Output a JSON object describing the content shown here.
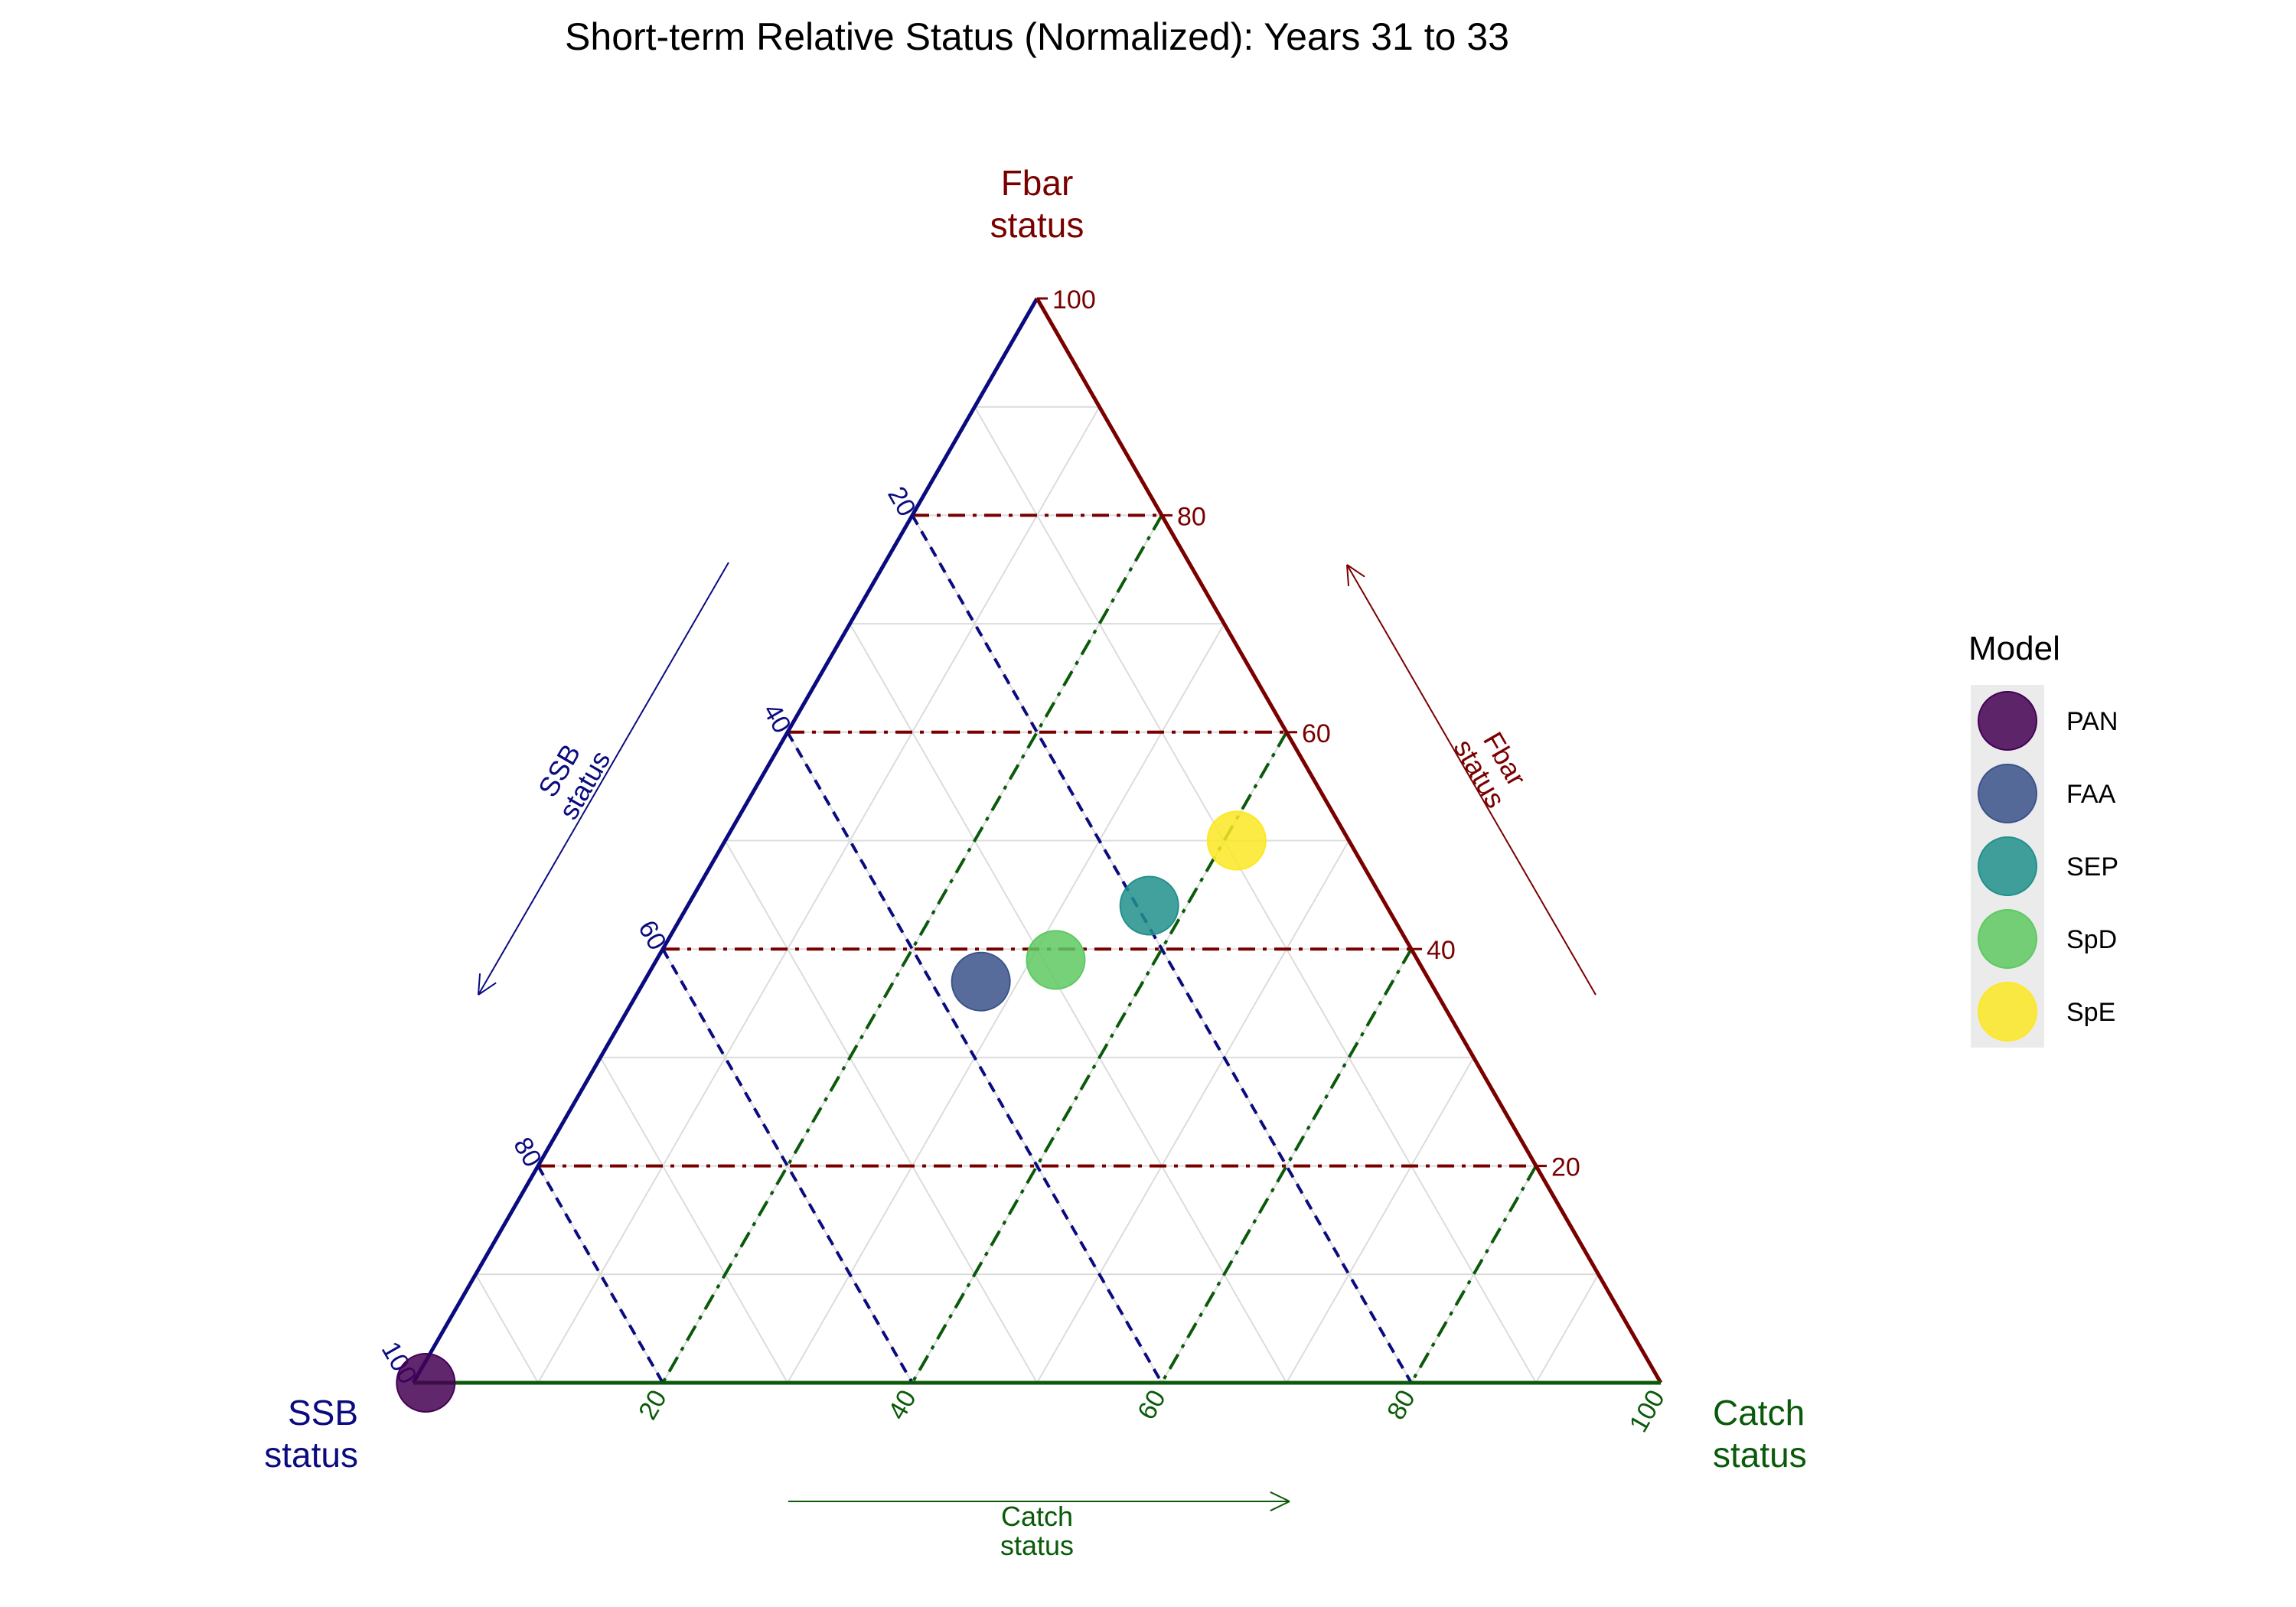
{
  "chart_data": {
    "type": "scatter",
    "subtype": "ternary",
    "title": "Short-term Relative Status (Normalized): Years 31 to 33",
    "axes": {
      "top": {
        "label_line1": "Fbar",
        "label_line2": "status",
        "arrow_label_line1": "Fbar",
        "arrow_label_line2": "status",
        "color": "#7a0000"
      },
      "left": {
        "label_line1": "SSB",
        "label_line2": "status",
        "arrow_label_line1": "SSB",
        "arrow_label_line2": "status",
        "color": "#0b0b80"
      },
      "right": {
        "label_line1": "Catch",
        "label_line2": "status",
        "arrow_label_line1": "Catch",
        "arrow_label_line2": "status",
        "color": "#0a5a0a"
      }
    },
    "ticks": [
      "20",
      "40",
      "60",
      "80",
      "100"
    ],
    "tick_values": [
      20,
      40,
      60,
      80,
      100
    ],
    "range": [
      0,
      100
    ],
    "grid": true,
    "minor_grid_step": 10,
    "legend": {
      "title": "Model",
      "position": "right",
      "entries": [
        "PAN",
        "FAA",
        "SEP",
        "SpD",
        "SpE"
      ]
    },
    "series": [
      {
        "name": "PAN",
        "color": "#440154",
        "fbar": 0.0,
        "ssb": 99.0,
        "catch": 1.0
      },
      {
        "name": "FAA",
        "color": "#3b528b",
        "fbar": 37.0,
        "ssb": 36.0,
        "catch": 27.0
      },
      {
        "name": "SEP",
        "color": "#21908c",
        "fbar": 44.0,
        "ssb": 19.0,
        "catch": 37.0
      },
      {
        "name": "SpD",
        "color": "#5ec962",
        "fbar": 39.0,
        "ssb": 29.0,
        "catch": 32.0
      },
      {
        "name": "SpE",
        "color": "#fde725",
        "fbar": 50.0,
        "ssb": 9.0,
        "catch": 41.0
      }
    ]
  }
}
